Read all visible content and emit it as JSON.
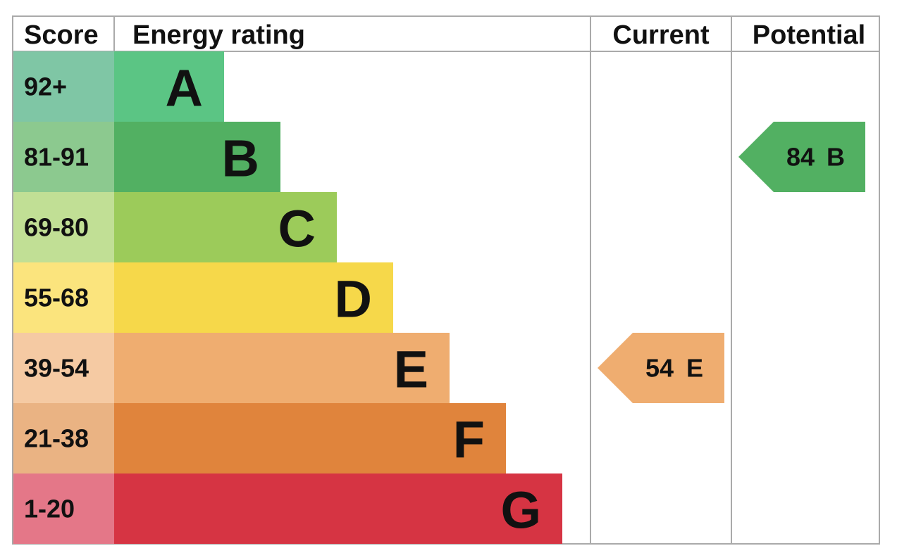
{
  "header": {
    "score": "Score",
    "rating": "Energy rating",
    "current": "Current",
    "potential": "Potential"
  },
  "bands": [
    {
      "score": "92+",
      "letter": "A",
      "color": "#5bc584",
      "score_color": "#7fc6a5"
    },
    {
      "score": "81-91",
      "letter": "B",
      "color": "#52b062",
      "score_color": "#8cc98f"
    },
    {
      "score": "69-80",
      "letter": "C",
      "color": "#9ccb5a",
      "score_color": "#c1df95"
    },
    {
      "score": "55-68",
      "letter": "D",
      "color": "#f6d84a",
      "score_color": "#fbe47d"
    },
    {
      "score": "39-54",
      "letter": "E",
      "color": "#efad70",
      "score_color": "#f5caa3"
    },
    {
      "score": "21-38",
      "letter": "F",
      "color": "#e0843c",
      "score_color": "#eab383"
    },
    {
      "score": "1-20",
      "letter": "G",
      "color": "#d63443",
      "score_color": "#e47788"
    }
  ],
  "current": {
    "value": "54",
    "letter": "E",
    "color": "#efad70"
  },
  "potential": {
    "value": "84",
    "letter": "B",
    "color": "#52b062"
  }
}
